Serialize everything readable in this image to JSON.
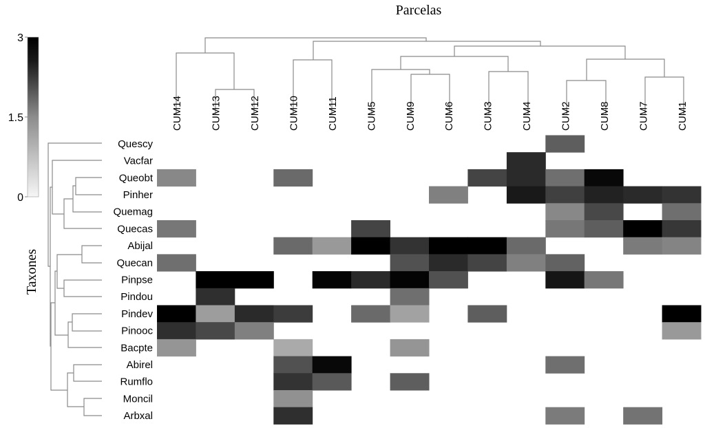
{
  "chart_data": {
    "type": "heatmap",
    "title": "Parcelas",
    "ylabel": "Taxones",
    "columns": [
      "CUM14",
      "CUM13",
      "CUM12",
      "CUM10",
      "CUM11",
      "CUM5",
      "CUM9",
      "CUM6",
      "CUM3",
      "CUM4",
      "CUM2",
      "CUM8",
      "CUM7",
      "CUM1"
    ],
    "rows": [
      "Quescy",
      "Vacfar",
      "Queobt",
      "Pinher",
      "Quemag",
      "Quecas",
      "Abijal",
      "Quecan",
      "Pinpse",
      "Pindou",
      "Pindev",
      "Pinooc",
      "Bacpte",
      "Abirel",
      "Rumflo",
      "Moncil",
      "Arbxal"
    ],
    "values": [
      [
        0,
        0,
        0,
        0,
        0,
        0,
        0,
        0,
        0,
        0,
        1.9,
        0,
        0,
        0
      ],
      [
        0,
        0,
        0,
        0,
        0,
        0,
        0,
        0,
        0,
        2.5,
        0,
        0,
        0,
        0
      ],
      [
        1.4,
        0,
        0,
        1.75,
        0,
        0,
        0,
        0,
        2.2,
        2.5,
        1.7,
        2.9,
        0,
        0
      ],
      [
        0,
        0,
        0,
        0,
        0,
        0,
        0,
        1.5,
        0,
        2.7,
        2.25,
        2.6,
        2.5,
        2.4
      ],
      [
        0,
        0,
        0,
        0,
        0,
        0,
        0,
        0,
        0,
        0,
        1.4,
        2.15,
        0,
        1.7
      ],
      [
        1.6,
        0,
        0,
        0,
        0,
        2.2,
        0,
        0,
        0,
        0,
        1.6,
        1.9,
        3,
        2.35
      ],
      [
        0,
        0,
        0,
        1.75,
        1.2,
        3,
        2.4,
        3,
        3,
        1.75,
        0,
        0,
        1.55,
        1.45
      ],
      [
        1.7,
        0,
        0,
        0,
        0,
        0,
        2.05,
        2.5,
        2.2,
        1.5,
        1.85,
        0,
        0,
        0
      ],
      [
        0,
        3,
        3,
        0,
        2.95,
        2.5,
        2.95,
        2.05,
        0,
        0,
        2.75,
        1.6,
        0,
        0
      ],
      [
        0,
        2.45,
        0,
        0,
        0,
        0,
        1.7,
        0,
        0,
        0,
        0,
        0,
        0,
        0
      ],
      [
        3,
        1.15,
        2.5,
        2.3,
        0,
        1.75,
        1.1,
        0,
        1.9,
        0,
        0,
        0,
        0,
        3
      ],
      [
        2.45,
        2.15,
        1.5,
        0,
        0,
        0,
        0,
        0,
        0,
        0,
        0,
        0,
        0,
        1.2
      ],
      [
        1.25,
        0,
        0,
        1.0,
        0,
        0,
        1.25,
        0,
        0,
        0,
        0,
        0,
        0,
        0
      ],
      [
        0,
        0,
        0,
        2.05,
        2.9,
        0,
        0,
        0,
        0,
        0,
        1.7,
        0,
        0,
        0
      ],
      [
        0,
        0,
        0,
        2.4,
        1.95,
        0,
        1.9,
        0,
        0,
        0,
        0,
        0,
        0,
        0
      ],
      [
        0,
        0,
        0,
        1.3,
        0,
        0,
        0,
        0,
        0,
        0,
        0,
        0,
        0,
        0
      ],
      [
        0,
        0,
        0,
        2.45,
        0,
        0,
        0,
        0,
        0,
        0,
        1.55,
        0,
        1.65,
        0
      ]
    ],
    "colorbar": {
      "min": 0,
      "max": 3,
      "ticks": [
        "3",
        "1.5",
        "0"
      ],
      "low_color": "#ffffff",
      "high_color": "#000000"
    },
    "dendrograms": {
      "rows": true,
      "columns": true
    }
  }
}
